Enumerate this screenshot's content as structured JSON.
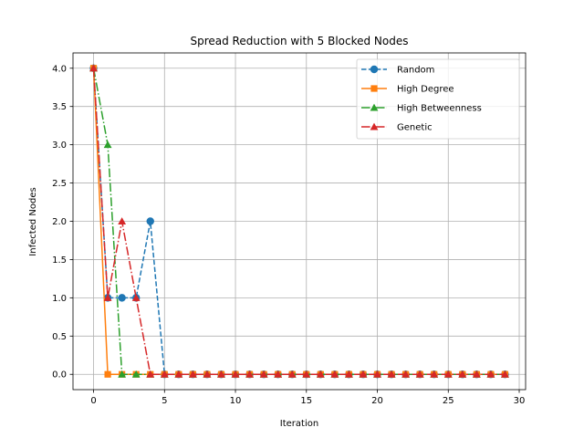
{
  "chart_data": {
    "type": "line",
    "title": "Spread Reduction with 5 Blocked Nodes",
    "xlabel": "Iteration",
    "ylabel": "Infected Nodes",
    "xlim": [
      -1.45,
      30.45
    ],
    "ylim": [
      -0.2,
      4.2
    ],
    "xticks": [
      0,
      5,
      10,
      15,
      20,
      25,
      30
    ],
    "yticks": [
      0.0,
      0.5,
      1.0,
      1.5,
      2.0,
      2.5,
      3.0,
      3.5,
      4.0
    ],
    "grid": true,
    "legend_position": "top-right",
    "x": [
      0,
      1,
      2,
      3,
      4,
      5,
      6,
      7,
      8,
      9,
      10,
      11,
      12,
      13,
      14,
      15,
      16,
      17,
      18,
      19,
      20,
      21,
      22,
      23,
      24,
      25,
      26,
      27,
      28,
      29
    ],
    "series": [
      {
        "name": "Random",
        "color": "#1f77b4",
        "dash": "dashed",
        "marker": "circle",
        "values": [
          4,
          1,
          1,
          1,
          2,
          0,
          0,
          0,
          0,
          0,
          0,
          0,
          0,
          0,
          0,
          0,
          0,
          0,
          0,
          0,
          0,
          0,
          0,
          0,
          0,
          0,
          0,
          0,
          0,
          0
        ]
      },
      {
        "name": "High Degree",
        "color": "#ff7f0e",
        "dash": "solid",
        "marker": "square",
        "values": [
          4,
          0,
          0,
          0,
          0,
          0,
          0,
          0,
          0,
          0,
          0,
          0,
          0,
          0,
          0,
          0,
          0,
          0,
          0,
          0,
          0,
          0,
          0,
          0,
          0,
          0,
          0,
          0,
          0,
          0
        ]
      },
      {
        "name": "High Betweenness",
        "color": "#2ca02c",
        "dash": "dashdot",
        "marker": "triangle",
        "values": [
          4,
          3,
          0,
          0,
          0,
          0,
          0,
          0,
          0,
          0,
          0,
          0,
          0,
          0,
          0,
          0,
          0,
          0,
          0,
          0,
          0,
          0,
          0,
          0,
          0,
          0,
          0,
          0,
          0,
          0
        ]
      },
      {
        "name": "Genetic",
        "color": "#d62728",
        "dash": "dashdot",
        "marker": "triangle",
        "values": [
          4,
          1,
          2,
          1,
          0,
          0,
          0,
          0,
          0,
          0,
          0,
          0,
          0,
          0,
          0,
          0,
          0,
          0,
          0,
          0,
          0,
          0,
          0,
          0,
          0,
          0,
          0,
          0,
          0,
          0
        ]
      }
    ]
  }
}
